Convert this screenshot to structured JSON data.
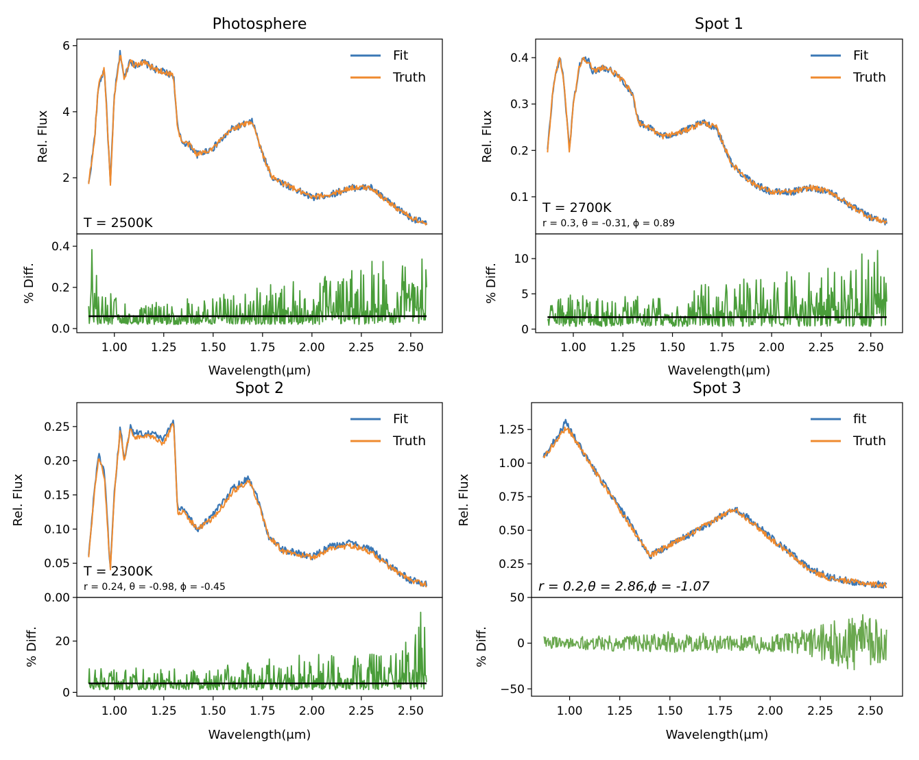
{
  "figure": {
    "x_tick_labels": [
      "1.00",
      "1.25",
      "1.50",
      "1.75",
      "2.00",
      "2.25",
      "2.50"
    ],
    "x_label": "Wavelength(μm)",
    "colors": {
      "fit": "#3a77b5",
      "truth": "#ef8a2e",
      "diff": "#4a9d3a",
      "diff_spot3": "#6aa84f",
      "mean_line": "#000000"
    }
  },
  "chart_data": [
    {
      "type": "line",
      "title": "Photosphere",
      "ylabel": "Rel. Flux",
      "ylim": [
        0.3,
        6.2
      ],
      "yticks": [
        2,
        4,
        6
      ],
      "ytick_labels": [
        "2",
        "4",
        "6"
      ],
      "xlim": [
        0.81,
        2.66
      ],
      "legend": {
        "position": "top-right",
        "entries": [
          "Fit",
          "Truth"
        ]
      },
      "annotation": "T = 2500K",
      "annotation_sub": "",
      "series": [
        {
          "name": "Fit",
          "x": [
            0.87,
            0.9,
            0.92,
            0.95,
            0.98,
            1.0,
            1.03,
            1.05,
            1.08,
            1.1,
            1.15,
            1.2,
            1.25,
            1.3,
            1.32,
            1.34,
            1.38,
            1.42,
            1.5,
            1.6,
            1.7,
            1.75,
            1.8,
            1.9,
            2.0,
            2.1,
            2.2,
            2.3,
            2.4,
            2.5,
            2.58
          ],
          "values": [
            1.8,
            3.2,
            4.8,
            5.3,
            1.8,
            4.5,
            5.8,
            5.0,
            5.6,
            5.4,
            5.5,
            5.3,
            5.2,
            5.1,
            3.5,
            3.1,
            3.0,
            2.7,
            2.9,
            3.5,
            3.7,
            2.7,
            2.0,
            1.7,
            1.4,
            1.5,
            1.7,
            1.7,
            1.2,
            0.8,
            0.6
          ]
        },
        {
          "name": "Truth",
          "x": [
            0.87,
            0.9,
            0.92,
            0.95,
            0.98,
            1.0,
            1.03,
            1.05,
            1.08,
            1.1,
            1.15,
            1.2,
            1.25,
            1.3,
            1.32,
            1.34,
            1.38,
            1.42,
            1.5,
            1.6,
            1.7,
            1.75,
            1.8,
            1.9,
            2.0,
            2.1,
            2.2,
            2.3,
            2.4,
            2.5,
            2.58
          ],
          "values": [
            1.8,
            3.2,
            4.8,
            5.3,
            1.8,
            4.5,
            5.8,
            5.0,
            5.6,
            5.4,
            5.5,
            5.3,
            5.2,
            5.1,
            3.5,
            3.1,
            3.0,
            2.7,
            2.9,
            3.5,
            3.7,
            2.7,
            2.0,
            1.7,
            1.4,
            1.5,
            1.7,
            1.7,
            1.2,
            0.8,
            0.6
          ]
        }
      ],
      "diff": {
        "ylabel": "% Diff.",
        "ylim": [
          -0.02,
          0.46
        ],
        "yticks": [
          0.0,
          0.2,
          0.4
        ],
        "ytick_labels": [
          "0.0",
          "0.2",
          "0.4"
        ],
        "mean": 0.06,
        "baseline": 0.02,
        "envelope": {
          "x": [
            0.87,
            0.95,
            1.1,
            1.3,
            1.5,
            1.75,
            2.0,
            2.25,
            2.5,
            2.58
          ],
          "values": [
            0.42,
            0.18,
            0.1,
            0.12,
            0.14,
            0.2,
            0.22,
            0.3,
            0.4,
            0.44
          ]
        }
      }
    },
    {
      "type": "line",
      "title": "Spot 1",
      "ylabel": "Rel. Flux",
      "ylim": [
        0.02,
        0.44
      ],
      "yticks": [
        0.1,
        0.2,
        0.3,
        0.4
      ],
      "ytick_labels": [
        "0.1",
        "0.2",
        "0.3",
        "0.4"
      ],
      "xlim": [
        0.81,
        2.66
      ],
      "legend": {
        "position": "top-right",
        "entries": [
          "Fit",
          "Truth"
        ]
      },
      "annotation": "T = 2700K",
      "annotation_sub": "r = 0.3, θ = -0.31, ϕ = 0.89",
      "series": [
        {
          "name": "Fit",
          "x": [
            0.87,
            0.9,
            0.93,
            0.95,
            0.98,
            1.0,
            1.03,
            1.05,
            1.08,
            1.1,
            1.15,
            1.2,
            1.25,
            1.3,
            1.33,
            1.38,
            1.45,
            1.55,
            1.65,
            1.72,
            1.8,
            1.9,
            2.0,
            2.1,
            2.2,
            2.3,
            2.4,
            2.5,
            2.58
          ],
          "values": [
            0.2,
            0.34,
            0.4,
            0.36,
            0.2,
            0.3,
            0.38,
            0.4,
            0.39,
            0.37,
            0.38,
            0.37,
            0.35,
            0.32,
            0.26,
            0.25,
            0.23,
            0.24,
            0.26,
            0.25,
            0.17,
            0.13,
            0.11,
            0.11,
            0.12,
            0.11,
            0.08,
            0.055,
            0.045
          ]
        },
        {
          "name": "Truth",
          "x": [
            0.87,
            0.9,
            0.93,
            0.95,
            0.98,
            1.0,
            1.03,
            1.05,
            1.08,
            1.1,
            1.15,
            1.2,
            1.25,
            1.3,
            1.33,
            1.38,
            1.45,
            1.55,
            1.65,
            1.72,
            1.8,
            1.9,
            2.0,
            2.1,
            2.2,
            2.3,
            2.4,
            2.5,
            2.58
          ],
          "values": [
            0.2,
            0.34,
            0.4,
            0.36,
            0.2,
            0.3,
            0.38,
            0.4,
            0.39,
            0.37,
            0.38,
            0.37,
            0.35,
            0.32,
            0.26,
            0.25,
            0.23,
            0.24,
            0.26,
            0.25,
            0.17,
            0.13,
            0.11,
            0.11,
            0.12,
            0.11,
            0.08,
            0.055,
            0.045
          ]
        }
      ],
      "diff": {
        "ylabel": "% Diff.",
        "ylim": [
          -0.5,
          13.5
        ],
        "yticks": [
          0,
          5,
          10
        ],
        "ytick_labels": [
          "0",
          "5",
          "10"
        ],
        "mean": 1.7,
        "baseline": 0.4,
        "envelope": {
          "x": [
            0.87,
            1.0,
            1.25,
            1.5,
            1.75,
            2.0,
            2.25,
            2.5,
            2.58
          ],
          "values": [
            7.5,
            5.5,
            4.5,
            5.0,
            6.5,
            7.5,
            9.0,
            11.0,
            13.2
          ]
        }
      }
    },
    {
      "type": "line",
      "title": "Spot 2",
      "ylabel": "Rel. Flux",
      "ylim": [
        0.0,
        0.285
      ],
      "yticks": [
        0.0,
        0.05,
        0.1,
        0.15,
        0.2,
        0.25
      ],
      "ytick_labels": [
        "0.00",
        "0.05",
        "0.10",
        "0.15",
        "0.20",
        "0.25"
      ],
      "xlim": [
        0.81,
        2.66
      ],
      "legend": {
        "position": "top-right",
        "entries": [
          "Fit",
          "Truth"
        ]
      },
      "annotation": "T = 2300K",
      "annotation_sub": "r = 0.24, θ = -0.98, ϕ = -0.45",
      "series": [
        {
          "name": "Fit",
          "x": [
            0.87,
            0.9,
            0.92,
            0.95,
            0.98,
            1.0,
            1.03,
            1.05,
            1.08,
            1.1,
            1.15,
            1.2,
            1.25,
            1.3,
            1.32,
            1.35,
            1.42,
            1.5,
            1.6,
            1.68,
            1.72,
            1.78,
            1.85,
            2.0,
            2.1,
            2.2,
            2.3,
            2.4,
            2.5,
            2.58
          ],
          "values": [
            0.06,
            0.16,
            0.21,
            0.18,
            0.04,
            0.15,
            0.25,
            0.2,
            0.25,
            0.24,
            0.24,
            0.24,
            0.23,
            0.26,
            0.13,
            0.13,
            0.1,
            0.12,
            0.16,
            0.175,
            0.15,
            0.09,
            0.07,
            0.06,
            0.075,
            0.08,
            0.07,
            0.045,
            0.025,
            0.02
          ]
        },
        {
          "name": "Truth",
          "x": [
            0.87,
            0.9,
            0.92,
            0.95,
            0.98,
            1.0,
            1.03,
            1.05,
            1.08,
            1.1,
            1.15,
            1.2,
            1.25,
            1.3,
            1.32,
            1.35,
            1.42,
            1.5,
            1.6,
            1.68,
            1.72,
            1.78,
            1.85,
            2.0,
            2.1,
            2.2,
            2.3,
            2.4,
            2.5,
            2.58
          ],
          "values": [
            0.06,
            0.155,
            0.205,
            0.175,
            0.04,
            0.15,
            0.245,
            0.2,
            0.245,
            0.235,
            0.235,
            0.235,
            0.225,
            0.255,
            0.125,
            0.125,
            0.1,
            0.115,
            0.155,
            0.17,
            0.145,
            0.09,
            0.068,
            0.058,
            0.072,
            0.076,
            0.066,
            0.043,
            0.024,
            0.019
          ]
        }
      ],
      "diff": {
        "ylabel": "% Diff.",
        "ylim": [
          -1.5,
          37
        ],
        "yticks": [
          0,
          20
        ],
        "ytick_labels": [
          "0",
          "20"
        ],
        "mean": 3.5,
        "baseline": 1.0,
        "envelope": {
          "x": [
            0.87,
            1.0,
            1.25,
            1.5,
            1.75,
            2.0,
            2.25,
            2.5,
            2.55,
            2.58
          ],
          "values": [
            16,
            10,
            8,
            9,
            12,
            14,
            16,
            20,
            35,
            36
          ]
        }
      }
    },
    {
      "type": "line",
      "title": "Spot 3",
      "ylabel": "Rel. Flux",
      "ylim": [
        0.0,
        1.45
      ],
      "yticks": [
        0.25,
        0.5,
        0.75,
        1.0,
        1.25
      ],
      "ytick_labels": [
        "0.25",
        "0.50",
        "0.75",
        "1.00",
        "1.25"
      ],
      "xlim": [
        0.81,
        2.66
      ],
      "legend": {
        "position": "top-right",
        "entries": [
          "fit",
          "Truth"
        ]
      },
      "annotation": "r = 0.2,θ = 2.86,ϕ = -1.07",
      "annotation_sub": "",
      "series": [
        {
          "name": "fit",
          "x": [
            0.87,
            0.98,
            1.0,
            1.1,
            1.2,
            1.3,
            1.4,
            1.6,
            1.82,
            1.9,
            2.0,
            2.1,
            2.2,
            2.3,
            2.4,
            2.5,
            2.58
          ],
          "values": [
            1.04,
            1.3,
            1.25,
            1.0,
            0.78,
            0.55,
            0.31,
            0.47,
            0.66,
            0.58,
            0.45,
            0.33,
            0.21,
            0.15,
            0.12,
            0.1,
            0.09
          ]
        },
        {
          "name": "Truth",
          "x": [
            0.87,
            0.98,
            1.0,
            1.1,
            1.2,
            1.3,
            1.4,
            1.6,
            1.82,
            1.9,
            2.0,
            2.1,
            2.2,
            2.3,
            2.4,
            2.5,
            2.58
          ],
          "values": [
            1.04,
            1.26,
            1.24,
            1.0,
            0.77,
            0.54,
            0.31,
            0.47,
            0.66,
            0.57,
            0.44,
            0.32,
            0.2,
            0.14,
            0.12,
            0.1,
            0.09
          ]
        }
      ],
      "diff": {
        "ylabel": "% Diff.",
        "ylim": [
          -58,
          50
        ],
        "yticks": [
          -50,
          0,
          50
        ],
        "ytick_labels": [
          "−50",
          "0",
          "50"
        ],
        "mean": null,
        "baseline": 0,
        "envelope": {
          "x": [
            0.87,
            1.0,
            1.25,
            1.5,
            1.75,
            2.0,
            2.15,
            2.3,
            2.4,
            2.5,
            2.58
          ],
          "values": [
            10,
            8,
            12,
            14,
            10,
            12,
            18,
            30,
            45,
            40,
            25
          ]
        }
      }
    }
  ]
}
